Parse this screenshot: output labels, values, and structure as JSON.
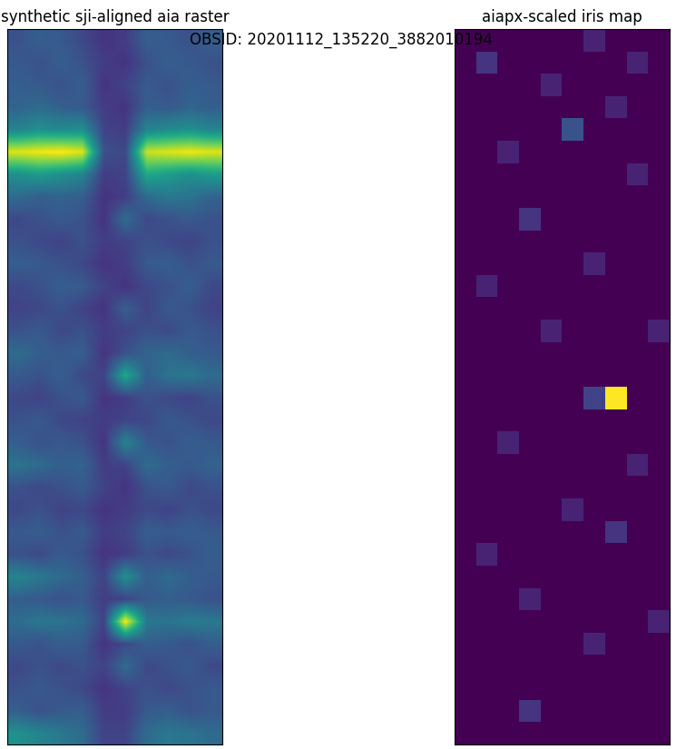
{
  "figure_text": "OBSID: 20201112_135220_3882010194",
  "chart_data": [
    {
      "type": "heatmap",
      "title": "synthetic sji-aligned aia raster",
      "tick_labels": false,
      "value_range": [
        0,
        1
      ],
      "cells": [
        [
          0.25,
          0.3,
          0.28,
          0.22,
          0.15,
          0.18,
          0.3,
          0.28,
          0.25,
          0.3
        ],
        [
          0.28,
          0.25,
          0.3,
          0.25,
          0.18,
          0.15,
          0.25,
          0.3,
          0.28,
          0.25
        ],
        [
          0.3,
          0.28,
          0.25,
          0.3,
          0.15,
          0.2,
          0.28,
          0.25,
          0.3,
          0.28
        ],
        [
          0.32,
          0.35,
          0.3,
          0.28,
          0.18,
          0.15,
          0.3,
          0.28,
          0.32,
          0.3
        ],
        [
          0.45,
          0.5,
          0.48,
          0.5,
          0.2,
          0.18,
          0.45,
          0.48,
          0.5,
          0.45
        ],
        [
          0.95,
          0.98,
          1.0,
          0.95,
          0.25,
          0.22,
          0.92,
          0.95,
          0.98,
          0.95
        ],
        [
          0.5,
          0.55,
          0.5,
          0.45,
          0.18,
          0.2,
          0.6,
          0.55,
          0.5,
          0.55
        ],
        [
          0.35,
          0.3,
          0.32,
          0.3,
          0.15,
          0.18,
          0.35,
          0.4,
          0.38,
          0.32
        ],
        [
          0.22,
          0.25,
          0.28,
          0.25,
          0.15,
          0.35,
          0.22,
          0.25,
          0.28,
          0.25
        ],
        [
          0.25,
          0.22,
          0.2,
          0.25,
          0.18,
          0.2,
          0.25,
          0.22,
          0.2,
          0.25
        ],
        [
          0.3,
          0.28,
          0.25,
          0.22,
          0.15,
          0.18,
          0.28,
          0.3,
          0.25,
          0.28
        ],
        [
          0.22,
          0.25,
          0.3,
          0.28,
          0.2,
          0.15,
          0.22,
          0.25,
          0.3,
          0.22
        ],
        [
          0.2,
          0.22,
          0.25,
          0.2,
          0.15,
          0.3,
          0.2,
          0.28,
          0.25,
          0.2
        ],
        [
          0.25,
          0.28,
          0.22,
          0.25,
          0.18,
          0.2,
          0.25,
          0.22,
          0.28,
          0.25
        ],
        [
          0.35,
          0.3,
          0.28,
          0.3,
          0.15,
          0.25,
          0.32,
          0.35,
          0.3,
          0.28
        ],
        [
          0.28,
          0.25,
          0.3,
          0.22,
          0.2,
          0.6,
          0.3,
          0.38,
          0.4,
          0.35
        ],
        [
          0.22,
          0.2,
          0.25,
          0.28,
          0.15,
          0.18,
          0.25,
          0.22,
          0.2,
          0.25
        ],
        [
          0.25,
          0.28,
          0.22,
          0.2,
          0.18,
          0.2,
          0.22,
          0.28,
          0.25,
          0.22
        ],
        [
          0.3,
          0.25,
          0.28,
          0.25,
          0.15,
          0.45,
          0.28,
          0.25,
          0.3,
          0.28
        ],
        [
          0.38,
          0.35,
          0.3,
          0.32,
          0.18,
          0.2,
          0.35,
          0.3,
          0.28,
          0.32
        ],
        [
          0.25,
          0.22,
          0.25,
          0.28,
          0.2,
          0.15,
          0.25,
          0.28,
          0.22,
          0.25
        ],
        [
          0.22,
          0.25,
          0.2,
          0.22,
          0.15,
          0.18,
          0.22,
          0.2,
          0.25,
          0.22
        ],
        [
          0.28,
          0.3,
          0.25,
          0.28,
          0.18,
          0.2,
          0.3,
          0.28,
          0.3,
          0.28
        ],
        [
          0.25,
          0.22,
          0.28,
          0.25,
          0.15,
          0.18,
          0.25,
          0.22,
          0.25,
          0.3
        ],
        [
          0.45,
          0.4,
          0.35,
          0.3,
          0.2,
          0.5,
          0.3,
          0.35,
          0.3,
          0.28
        ],
        [
          0.3,
          0.28,
          0.25,
          0.28,
          0.18,
          0.2,
          0.28,
          0.3,
          0.28,
          0.25
        ],
        [
          0.35,
          0.4,
          0.38,
          0.35,
          0.2,
          1.0,
          0.4,
          0.38,
          0.42,
          0.4
        ],
        [
          0.28,
          0.25,
          0.3,
          0.28,
          0.15,
          0.22,
          0.3,
          0.28,
          0.25,
          0.3
        ],
        [
          0.22,
          0.25,
          0.22,
          0.25,
          0.2,
          0.35,
          0.22,
          0.25,
          0.28,
          0.22
        ],
        [
          0.25,
          0.28,
          0.25,
          0.22,
          0.15,
          0.2,
          0.25,
          0.22,
          0.25,
          0.28
        ],
        [
          0.3,
          0.25,
          0.28,
          0.3,
          0.18,
          0.18,
          0.28,
          0.3,
          0.25,
          0.28
        ],
        [
          0.5,
          0.45,
          0.4,
          0.35,
          0.2,
          0.2,
          0.35,
          0.4,
          0.38,
          0.35
        ]
      ]
    },
    {
      "type": "heatmap",
      "title": "aiapx-scaled iris map",
      "tick_labels": false,
      "value_range": [
        0,
        1
      ],
      "cells": [
        [
          0,
          0,
          0,
          0,
          0,
          0,
          0.1,
          0,
          0,
          0
        ],
        [
          0,
          0.15,
          0,
          0,
          0,
          0,
          0,
          0,
          0.1,
          0
        ],
        [
          0,
          0,
          0,
          0,
          0.1,
          0,
          0,
          0,
          0,
          0
        ],
        [
          0,
          0,
          0,
          0,
          0,
          0,
          0,
          0.1,
          0,
          0
        ],
        [
          0,
          0,
          0,
          0,
          0,
          0.25,
          0,
          0,
          0,
          0
        ],
        [
          0,
          0,
          0.1,
          0,
          0,
          0,
          0,
          0,
          0,
          0
        ],
        [
          0,
          0,
          0,
          0,
          0,
          0,
          0,
          0,
          0.1,
          0
        ],
        [
          0,
          0,
          0,
          0,
          0,
          0,
          0,
          0,
          0,
          0
        ],
        [
          0,
          0,
          0,
          0.15,
          0,
          0,
          0,
          0,
          0,
          0
        ],
        [
          0,
          0,
          0,
          0,
          0,
          0,
          0,
          0,
          0,
          0
        ],
        [
          0,
          0,
          0,
          0,
          0,
          0,
          0.1,
          0,
          0,
          0
        ],
        [
          0,
          0.1,
          0,
          0,
          0,
          0,
          0,
          0,
          0,
          0
        ],
        [
          0,
          0,
          0,
          0,
          0,
          0,
          0,
          0,
          0,
          0
        ],
        [
          0,
          0,
          0,
          0,
          0.1,
          0,
          0,
          0,
          0,
          0.1
        ],
        [
          0,
          0,
          0,
          0,
          0,
          0,
          0,
          0,
          0,
          0
        ],
        [
          0,
          0,
          0,
          0,
          0,
          0,
          0,
          0,
          0,
          0
        ],
        [
          0,
          0,
          0,
          0,
          0,
          0,
          0.2,
          1.0,
          0,
          0
        ],
        [
          0,
          0,
          0,
          0,
          0,
          0,
          0,
          0,
          0,
          0
        ],
        [
          0,
          0,
          0.1,
          0,
          0,
          0,
          0,
          0,
          0,
          0
        ],
        [
          0,
          0,
          0,
          0,
          0,
          0,
          0,
          0,
          0.1,
          0
        ],
        [
          0,
          0,
          0,
          0,
          0,
          0,
          0,
          0,
          0,
          0
        ],
        [
          0,
          0,
          0,
          0,
          0,
          0.1,
          0,
          0,
          0,
          0
        ],
        [
          0,
          0,
          0,
          0,
          0,
          0,
          0,
          0.15,
          0,
          0
        ],
        [
          0,
          0.1,
          0,
          0,
          0,
          0,
          0,
          0,
          0,
          0
        ],
        [
          0,
          0,
          0,
          0,
          0,
          0,
          0,
          0,
          0,
          0
        ],
        [
          0,
          0,
          0,
          0.1,
          0,
          0,
          0,
          0,
          0,
          0
        ],
        [
          0,
          0,
          0,
          0,
          0,
          0,
          0,
          0,
          0,
          0.1
        ],
        [
          0,
          0,
          0,
          0,
          0,
          0,
          0.1,
          0,
          0,
          0
        ],
        [
          0,
          0,
          0,
          0,
          0,
          0,
          0,
          0,
          0,
          0
        ],
        [
          0,
          0,
          0,
          0,
          0,
          0,
          0,
          0,
          0,
          0
        ],
        [
          0,
          0,
          0,
          0.15,
          0,
          0,
          0,
          0,
          0,
          0
        ],
        [
          0,
          0,
          0,
          0,
          0,
          0,
          0,
          0,
          0,
          0
        ]
      ]
    }
  ]
}
